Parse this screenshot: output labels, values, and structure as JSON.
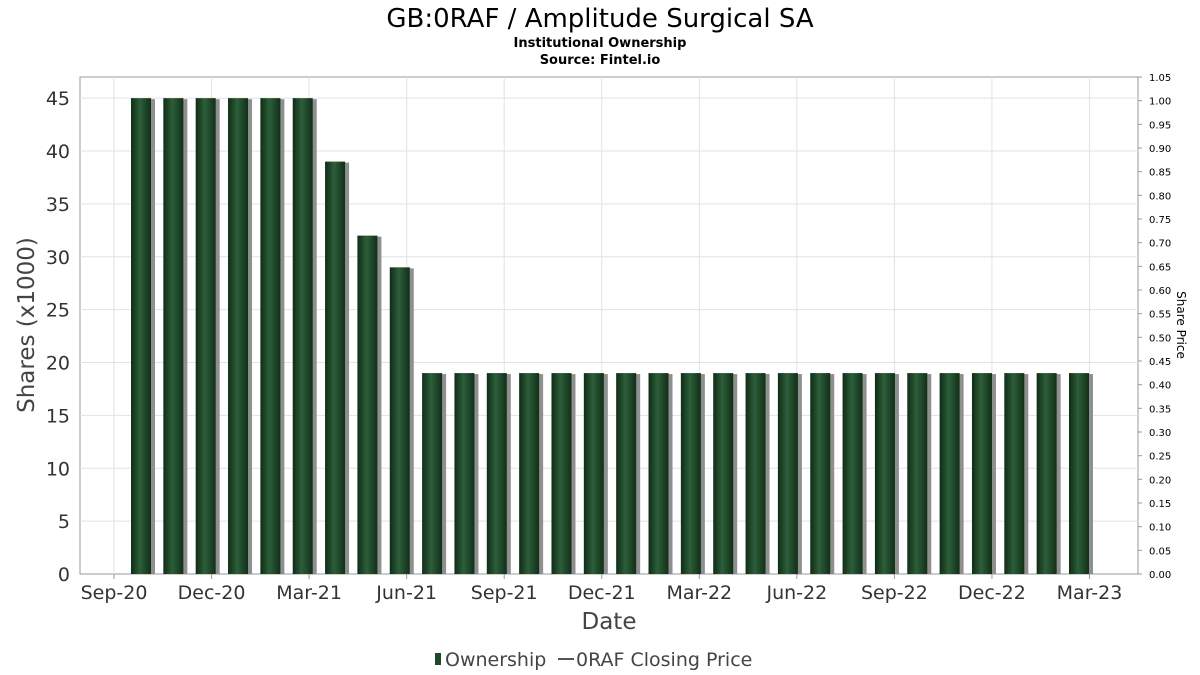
{
  "chart_data": {
    "type": "bar",
    "title": "GB:0RAF / Amplitude Surgical SA",
    "subtitle": "Institutional Ownership",
    "source": "Source: Fintel.io",
    "xlabel": "Date",
    "ylabel": "Shares (x1000)",
    "y2label": "Share Price",
    "ylim": [
      0,
      47
    ],
    "y2lim": [
      0,
      1.05
    ],
    "yticks": [
      0,
      5,
      10,
      15,
      20,
      25,
      30,
      35,
      40,
      45
    ],
    "y2ticks": [
      "0.00",
      "0.05",
      "0.10",
      "0.15",
      "0.20",
      "0.25",
      "0.30",
      "0.35",
      "0.40",
      "0.45",
      "0.50",
      "0.55",
      "0.60",
      "0.65",
      "0.70",
      "0.75",
      "0.80",
      "0.85",
      "0.90",
      "0.95",
      "1.00",
      "1.05"
    ],
    "xticks": [
      "Sep-20",
      "Dec-20",
      "Mar-21",
      "Jun-21",
      "Sep-21",
      "Dec-21",
      "Mar-22",
      "Jun-22",
      "Sep-22",
      "Dec-22",
      "Mar-23"
    ],
    "grid": true,
    "legend_position": "bottom",
    "series": [
      {
        "name": "Ownership",
        "color": "#1e4a28",
        "values": [
          45,
          45,
          45,
          45,
          45,
          45,
          39,
          32,
          29,
          19,
          19,
          19,
          19,
          19,
          19,
          19,
          19,
          19,
          19,
          19,
          19,
          19,
          19,
          19,
          19,
          19,
          19,
          19,
          19,
          19
        ]
      },
      {
        "name": "0RAF Closing Price",
        "color": "#555555",
        "values": []
      }
    ]
  }
}
